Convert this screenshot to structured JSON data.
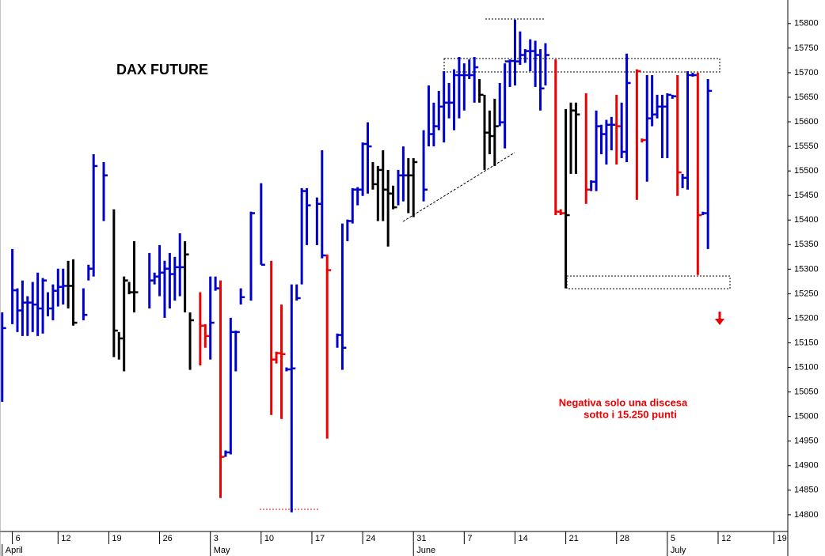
{
  "chart_data": {
    "type": "ohlc",
    "title": "DAX FUTURE",
    "annotation": [
      "Negativa solo una discesa",
      "sotto i 15.250 punti"
    ],
    "categories": [
      null,
      null,
      "6",
      null,
      null,
      null,
      null,
      null,
      null,
      null,
      null,
      "12",
      null,
      null,
      null,
      null,
      null,
      null,
      null,
      null,
      null,
      "19",
      null,
      null,
      null,
      null,
      null,
      null,
      null,
      null,
      null,
      "26",
      null,
      null,
      null,
      null,
      null,
      null,
      null,
      null,
      null,
      "3",
      null,
      null,
      null,
      null,
      null,
      null,
      null,
      null,
      null,
      "10",
      null,
      null,
      null,
      null,
      null,
      null,
      null,
      null,
      null,
      "17",
      null,
      null,
      null,
      null,
      null,
      null,
      null,
      null,
      null,
      "24",
      null,
      null,
      null,
      null,
      null,
      null,
      null,
      null,
      null,
      "31",
      null,
      null,
      null,
      null,
      null,
      null,
      null,
      null,
      null,
      "7",
      null,
      null,
      null,
      null,
      null,
      null,
      null,
      null,
      null,
      "14",
      null,
      null,
      null,
      null,
      null,
      null,
      null,
      null,
      null,
      "21",
      null,
      null,
      null,
      null,
      null,
      null,
      null,
      null,
      null,
      "28",
      null,
      null,
      null,
      null,
      null,
      null,
      null,
      null,
      null,
      "5",
      null,
      null,
      null,
      null,
      null,
      null,
      null,
      null,
      null,
      "12",
      null,
      null,
      null,
      null,
      null,
      null,
      null,
      null,
      null,
      null,
      "19",
      null,
      null
    ],
    "months": [
      "April",
      null,
      null,
      null,
      null,
      null,
      null,
      null,
      null,
      null,
      null,
      null,
      null,
      null,
      null,
      null,
      null,
      null,
      null,
      null,
      null,
      null,
      null,
      null,
      null,
      null,
      null,
      null,
      null,
      null,
      null,
      null,
      null,
      null,
      null,
      null,
      null,
      null,
      null,
      null,
      null,
      "May",
      null,
      null,
      null,
      null,
      null,
      null,
      null,
      null,
      null,
      null,
      null,
      null,
      null,
      null,
      null,
      null,
      null,
      null,
      null,
      null,
      null,
      null,
      null,
      null,
      null,
      null,
      null,
      null,
      null,
      null,
      null,
      null,
      null,
      null,
      null,
      null,
      null,
      null,
      null,
      "June",
      null,
      null,
      null,
      null,
      null,
      null,
      null,
      null,
      null,
      null,
      null,
      null,
      null,
      null,
      null,
      null,
      null,
      null,
      null,
      null,
      null,
      null,
      null,
      null,
      null,
      null,
      null,
      null,
      null,
      null,
      null,
      null,
      null,
      null,
      null,
      null,
      null,
      null,
      null,
      null,
      null,
      null,
      null,
      null,
      null,
      null,
      null,
      null,
      null,
      "July",
      null,
      null,
      null,
      null,
      null,
      null,
      null,
      null,
      null,
      null,
      null,
      null,
      null,
      null,
      null,
      null,
      null,
      null,
      null,
      null,
      null,
      null,
      null
    ],
    "high": [
      15212,
      null,
      15341,
      15261,
      15277,
      15245,
      15274,
      15293,
      15282,
      15253,
      15269,
      15301,
      15301,
      15317,
      15320,
      null,
      15261,
      15309,
      15534,
      null,
      15518,
      null,
      15422,
      15172,
      15285,
      15274,
      15357,
      null,
      null,
      15333,
      15293,
      15349,
      15317,
      15333,
      15325,
      15373,
      15357,
      15212,
      null,
      15253,
      15188,
      15285,
      15285,
      15277,
      14931,
      15201,
      15175,
      15261,
      null,
      15417,
      null,
      15475,
      null,
      15317,
      15132,
      15228,
      15100,
      15269,
      15269,
      15465,
      15465,
      null,
      15446,
      15542,
      15330,
      null,
      15169,
      15393,
      15401,
      15465,
      15467,
      15558,
      15599,
      15518,
      15510,
      15542,
      15502,
      15470,
      15502,
      15550,
      15526,
      15526,
      null,
      15583,
      15674,
      15639,
      15663,
      15703,
      15679,
      15707,
      15732,
      15719,
      15727,
      15732,
      15687,
      15655,
      15623,
      15647,
      15679,
      15719,
      15727,
      15808,
      15784,
      15748,
      15768,
      15765,
      15748,
      15760,
      null,
      15727,
      15422,
      15626,
      15639,
      15639,
      null,
      15658,
      15481,
      15623,
      15594,
      15604,
      15610,
      15655,
      15639,
      15739,
      null,
      15707,
      15566,
      15695,
      15695,
      15655,
      15655,
      15658,
      15655,
      15695,
      15494,
      15703,
      15700,
      15700,
      15417,
      15687,
      null,
      null,
      null,
      null,
      null,
      null,
      null,
      null,
      null,
      null,
      null,
      null,
      null,
      null,
      null
    ],
    "low": [
      15030,
      null,
      15188,
      15172,
      15164,
      15164,
      15172,
      15164,
      15169,
      15204,
      15196,
      15224,
      15228,
      15220,
      15185,
      null,
      15196,
      15277,
      15285,
      null,
      15398,
      null,
      15121,
      15116,
      15092,
      15249,
      15212,
      null,
      null,
      15220,
      15269,
      15245,
      15201,
      15220,
      15236,
      15245,
      15212,
      15095,
      null,
      15104,
      15140,
      15116,
      15256,
      14834,
      14918,
      14923,
      15092,
      15228,
      null,
      15236,
      null,
      15309,
      null,
      15003,
      15108,
      14995,
      15092,
      14805,
      15236,
      15269,
      15349,
      null,
      15349,
      15322,
      14955,
      null,
      15140,
      15095,
      15357,
      15393,
      15430,
      15449,
      15454,
      15462,
      15398,
      15398,
      15346,
      15422,
      15430,
      15438,
      15414,
      15406,
      null,
      15438,
      15550,
      15550,
      15583,
      15558,
      15607,
      15583,
      15607,
      15623,
      15687,
      15639,
      15639,
      15502,
      15534,
      15510,
      15591,
      15546,
      15671,
      15674,
      15716,
      15720,
      15703,
      15671,
      15623,
      15674,
      null,
      15410,
      15410,
      15261,
      15494,
      15494,
      null,
      15433,
      15459,
      15459,
      15534,
      15513,
      15542,
      15513,
      15526,
      15518,
      null,
      15441,
      15558,
      15478,
      15591,
      15607,
      15526,
      15526,
      15647,
      15449,
      15465,
      15462,
      15692,
      15288,
      15410,
      15341,
      null,
      null,
      null,
      null,
      null,
      null,
      null,
      null,
      null,
      null,
      null,
      null,
      null,
      null,
      null
    ],
    "close": [
      15180,
      null,
      15257,
      15216,
      15232,
      15232,
      15228,
      15220,
      15277,
      15220,
      15256,
      15264,
      15266,
      15266,
      15191,
      null,
      15207,
      15301,
      15510,
      null,
      15491,
      null,
      15175,
      15159,
      15277,
      15253,
      15253,
      null,
      null,
      15277,
      15285,
      15293,
      15301,
      15290,
      15304,
      15304,
      15330,
      15196,
      null,
      15185,
      15164,
      15191,
      15261,
      14918,
      14927,
      15172,
      15172,
      15243,
      null,
      15414,
      null,
      15309,
      null,
      15116,
      15129,
      15127,
      15096,
      15098,
      15241,
      15459,
      15430,
      null,
      15433,
      15328,
      15298,
      null,
      15166,
      15140,
      15398,
      15462,
      15462,
      15555,
      15550,
      15473,
      15502,
      15462,
      15454,
      15426,
      15491,
      15491,
      15491,
      15518,
      null,
      15462,
      15575,
      15591,
      15631,
      15639,
      15639,
      15695,
      15695,
      15695,
      15695,
      15711,
      15655,
      15578,
      15571,
      15591,
      15599,
      15723,
      15724,
      15723,
      15736,
      15744,
      15744,
      15736,
      15668,
      15736,
      null,
      15417,
      15414,
      15410,
      15623,
      15615,
      null,
      15462,
      15478,
      15591,
      15575,
      15594,
      15594,
      15591,
      15539,
      15679,
      null,
      15703,
      15563,
      15607,
      15615,
      15631,
      15631,
      15655,
      15652,
      15497,
      15486,
      15695,
      15695,
      15410,
      15414,
      15663,
      null,
      null,
      null,
      null,
      null,
      null,
      null,
      null,
      null,
      null,
      null,
      null,
      null,
      null,
      null
    ],
    "colors": [
      "#0000cc",
      null,
      "#0000cc",
      "#0000cc",
      "#0000cc",
      "#0000cc",
      "#0000cc",
      "#0000cc",
      "#0000cc",
      "#0000cc",
      "#0000cc",
      "#0000cc",
      "#0000cc",
      "#000000",
      "#000000",
      null,
      "#0000cc",
      "#0000cc",
      "#0000cc",
      null,
      "#0000cc",
      null,
      "#000000",
      "#000000",
      "#000000",
      "#000000",
      "#000000",
      null,
      null,
      "#0000cc",
      "#0000cc",
      "#0000cc",
      "#0000cc",
      "#0000cc",
      "#0000cc",
      "#0000cc",
      "#000000",
      "#000000",
      null,
      "#ee0000",
      "#ee0000",
      "#0000cc",
      "#0000cc",
      "#ee0000",
      "#0000cc",
      "#0000cc",
      "#0000cc",
      "#0000cc",
      null,
      "#0000cc",
      null,
      "#0000cc",
      null,
      "#ee0000",
      "#ee0000",
      "#ee0000",
      "#0000cc",
      "#0000cc",
      "#0000cc",
      "#0000cc",
      "#0000cc",
      null,
      "#0000cc",
      "#0000cc",
      "#ee0000",
      null,
      "#0000cc",
      "#0000cc",
      "#0000cc",
      "#0000cc",
      "#0000cc",
      "#0000cc",
      "#0000cc",
      "#000000",
      "#000000",
      "#000000",
      "#000000",
      "#000000",
      "#0000cc",
      "#0000cc",
      "#000000",
      "#000000",
      null,
      "#0000cc",
      "#0000cc",
      "#0000cc",
      "#0000cc",
      "#0000cc",
      "#0000cc",
      "#0000cc",
      "#0000cc",
      "#0000cc",
      "#0000cc",
      "#0000cc",
      "#000000",
      "#000000",
      "#000000",
      "#000000",
      "#0000cc",
      "#0000cc",
      "#0000cc",
      "#0000cc",
      "#0000cc",
      "#0000cc",
      "#0000cc",
      "#0000cc",
      "#0000cc",
      "#0000cc",
      null,
      "#ee0000",
      "#ee0000",
      "#000000",
      "#000000",
      "#000000",
      null,
      "#ee0000",
      "#0000cc",
      "#0000cc",
      "#0000cc",
      "#0000cc",
      "#0000cc",
      "#ee0000",
      "#0000cc",
      "#0000cc",
      null,
      "#ee0000",
      "#ee0000",
      "#0000cc",
      "#0000cc",
      "#0000cc",
      "#0000cc",
      "#0000cc",
      "#0000cc",
      "#ee0000",
      "#0000cc",
      "#0000cc",
      "#0000cc",
      "#ee0000",
      "#0000cc",
      "#0000cc",
      null,
      null,
      null,
      null,
      null,
      null,
      null,
      null,
      null,
      null,
      null,
      null,
      null,
      null,
      null
    ],
    "ylim": [
      14766,
      15848
    ],
    "yticks": [
      14800,
      14850,
      14900,
      14950,
      15000,
      15050,
      15100,
      15150,
      15200,
      15250,
      15300,
      15350,
      15400,
      15450,
      15500,
      15550,
      15600,
      15650,
      15700,
      15750,
      15800
    ]
  }
}
